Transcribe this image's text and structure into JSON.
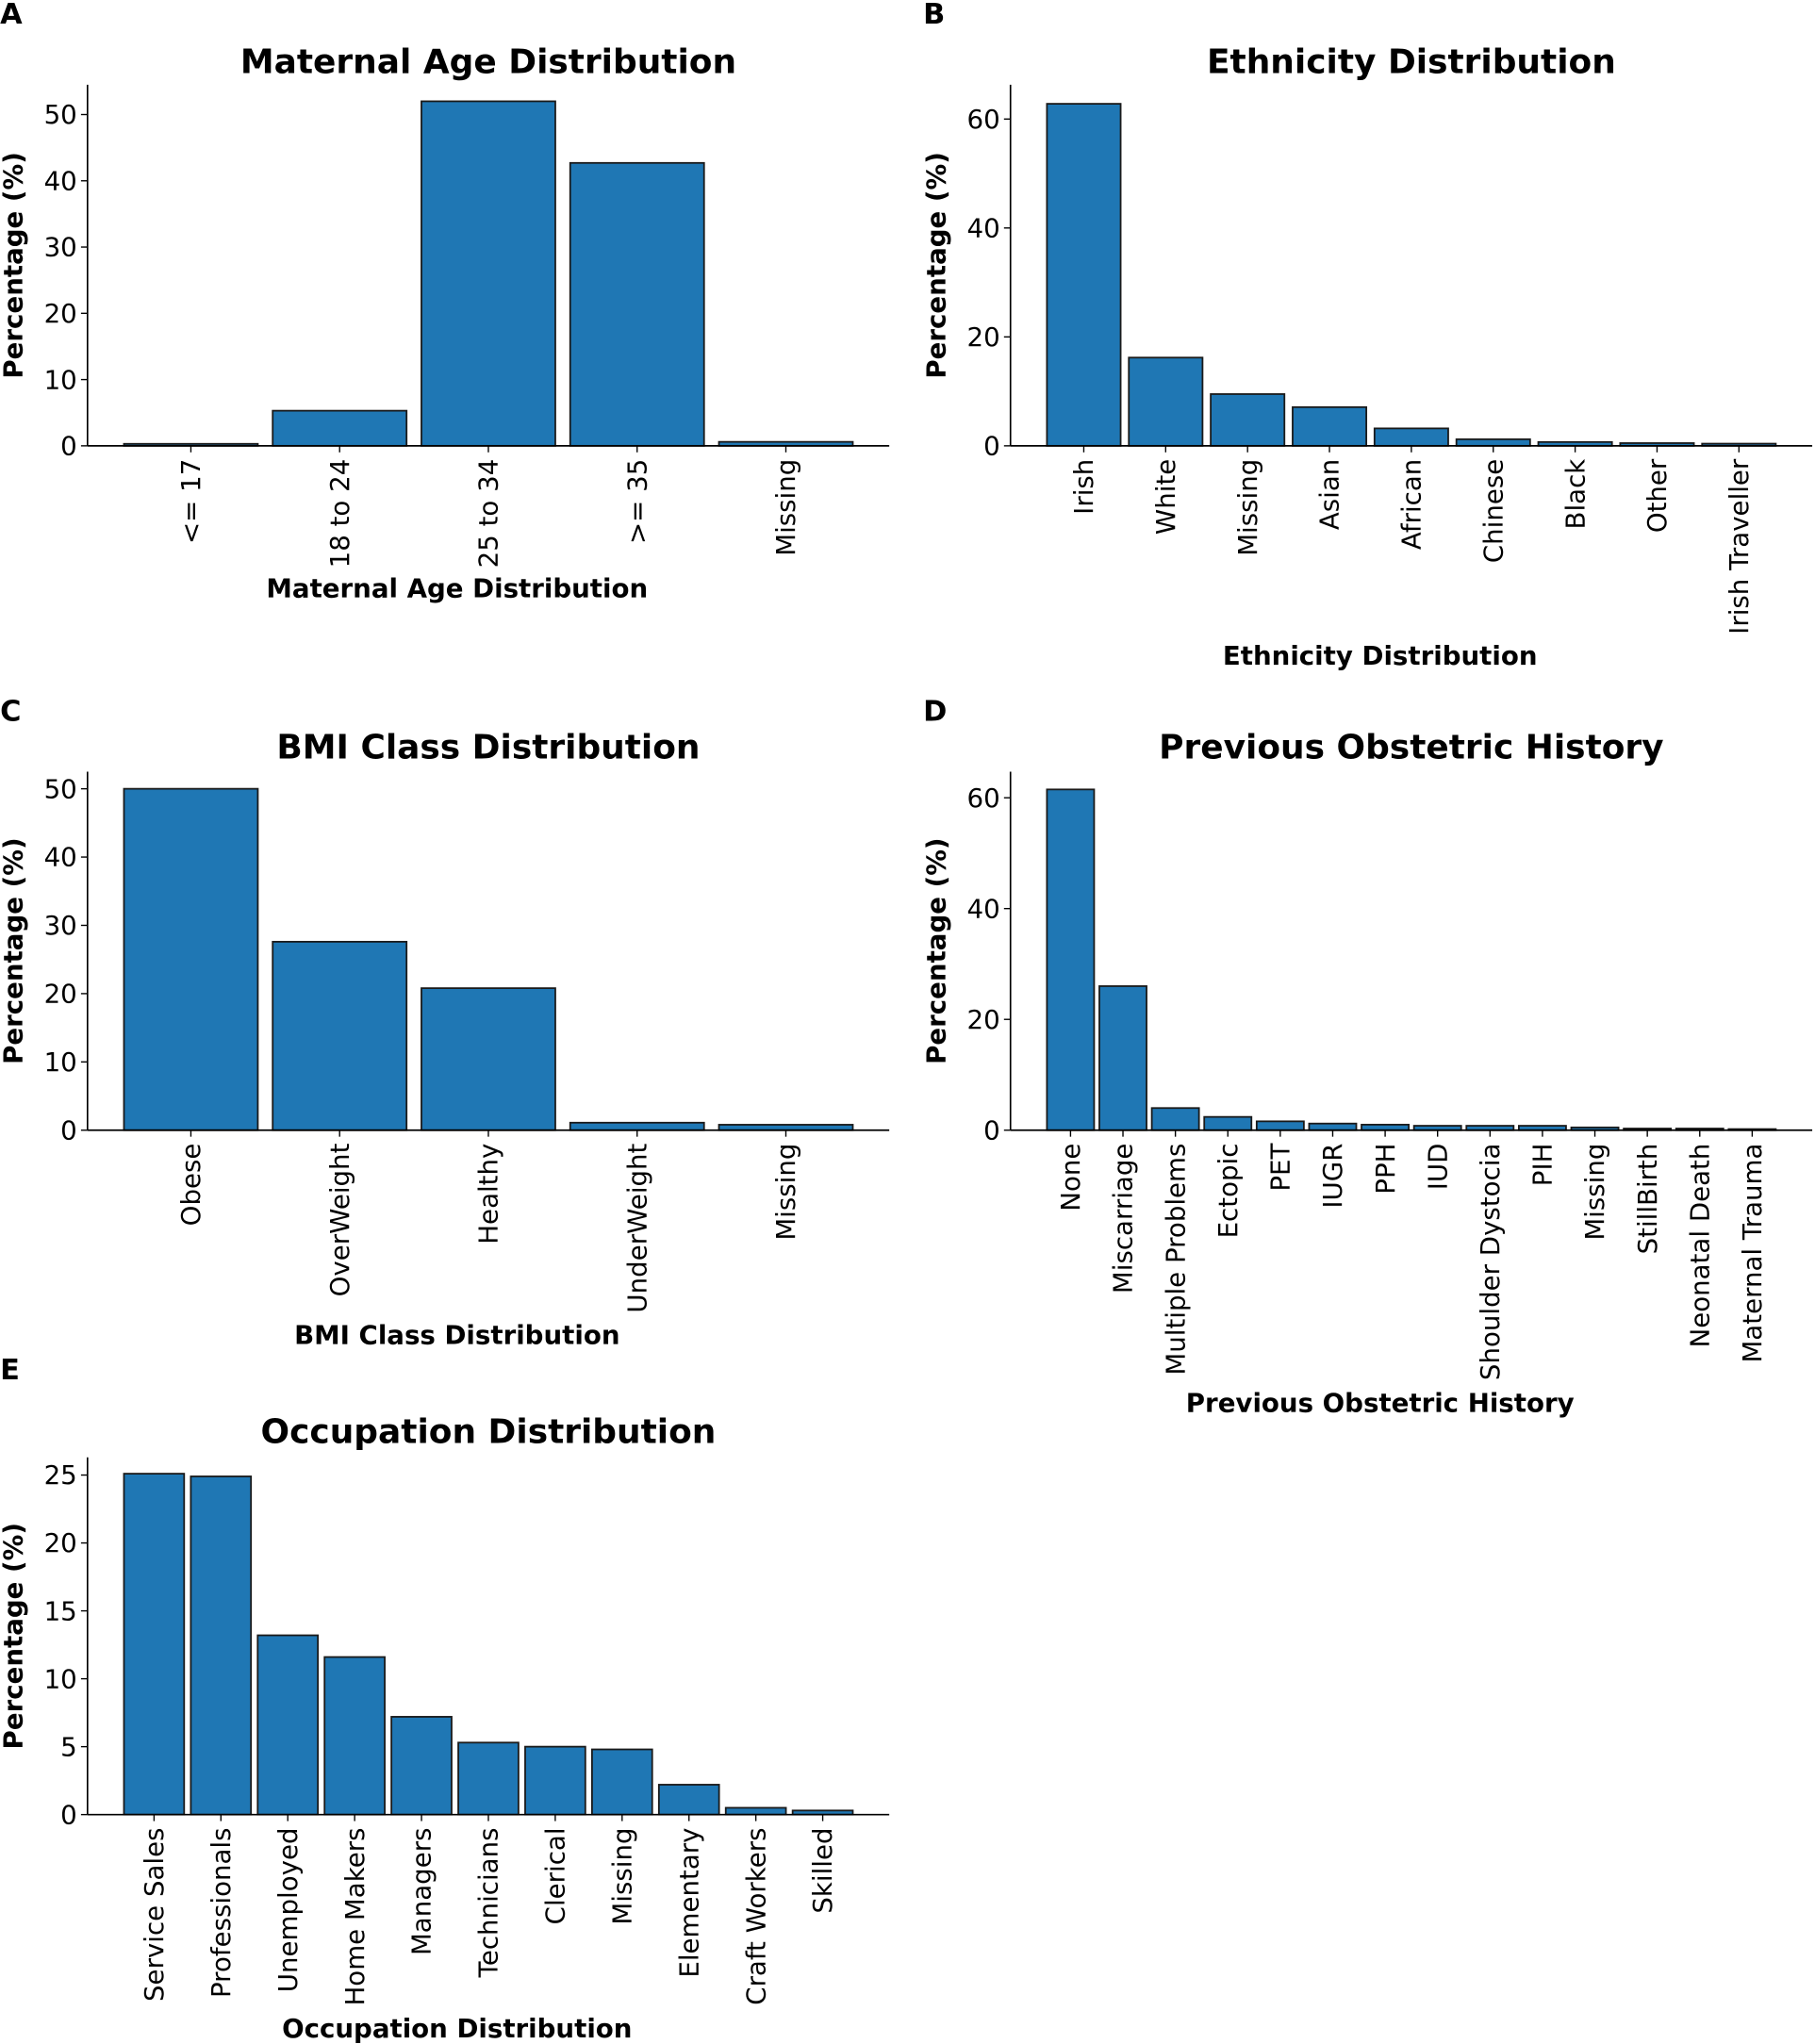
{
  "bar_color": "#1f77b4",
  "edge_color": "#1a1a1a",
  "chart_data": [
    {
      "panel": "A",
      "type": "bar",
      "title": "Maternal Age Distribution",
      "xlabel": "Maternal Age Distribution",
      "ylabel": "Percentage (%)",
      "categories": [
        "<= 17",
        "18 to 24",
        "25 to 34",
        ">= 35",
        "Missing"
      ],
      "values": [
        0.3,
        5.3,
        52.0,
        42.7,
        0.6
      ],
      "yticks": [
        0,
        10,
        20,
        30,
        40,
        50
      ],
      "ylim": [
        0,
        54.5
      ]
    },
    {
      "panel": "B",
      "type": "bar",
      "title": "Ethnicity Distribution",
      "xlabel": "Ethnicity Distribution",
      "ylabel": "Percentage (%)",
      "categories": [
        "Irish",
        "White",
        "Missing",
        "Asian",
        "African",
        "Chinese",
        "Black",
        "Other",
        "Irish Traveller"
      ],
      "values": [
        62.8,
        16.2,
        9.5,
        7.1,
        3.2,
        1.2,
        0.7,
        0.5,
        0.4
      ],
      "yticks": [
        0,
        20,
        40,
        60
      ],
      "ylim": [
        0,
        66.3
      ]
    },
    {
      "panel": "C",
      "type": "bar",
      "title": "BMI Class Distribution",
      "xlabel": "BMI Class Distribution",
      "ylabel": "Percentage (%)",
      "categories": [
        "Obese",
        "OverWeight",
        "Healthy",
        "UnderWeight",
        "Missing"
      ],
      "values": [
        50.0,
        27.6,
        20.8,
        1.1,
        0.8
      ],
      "yticks": [
        0,
        10,
        20,
        30,
        40,
        50
      ],
      "ylim": [
        0,
        52.5
      ]
    },
    {
      "panel": "D",
      "type": "bar",
      "title": "Previous Obstetric History",
      "xlabel": "Previous Obstetric History",
      "ylabel": "Percentage (%)",
      "categories": [
        "None",
        "Miscarriage",
        "Multiple Problems",
        "Ectopic",
        "PET",
        "IUGR",
        "PPH",
        "IUD",
        "Shoulder Dystocia",
        "PIH",
        "Missing",
        "StillBirth",
        "Neonatal Death",
        "Maternal Trauma"
      ],
      "values": [
        61.5,
        26.0,
        4.0,
        2.4,
        1.6,
        1.2,
        1.0,
        0.8,
        0.8,
        0.8,
        0.5,
        0.3,
        0.3,
        0.2
      ],
      "yticks": [
        0,
        20,
        40,
        60
      ],
      "ylim": [
        0,
        64.7
      ]
    },
    {
      "panel": "E",
      "type": "bar",
      "title": "Occupation Distribution",
      "xlabel": "Occupation Distribution",
      "ylabel": "Percentage (%)",
      "categories": [
        "Service Sales",
        "Professionals",
        "Unemployed",
        "Home Makers",
        "Managers",
        "Technicians",
        "Clerical",
        "Missing",
        "Elementary",
        "Craft Workers",
        "Skilled"
      ],
      "values": [
        25.1,
        24.9,
        13.2,
        11.6,
        7.2,
        5.3,
        5.0,
        4.8,
        2.2,
        0.5,
        0.3
      ],
      "yticks": [
        0,
        5,
        10,
        15,
        20,
        25
      ],
      "ylim": [
        0,
        26.3
      ]
    }
  ]
}
